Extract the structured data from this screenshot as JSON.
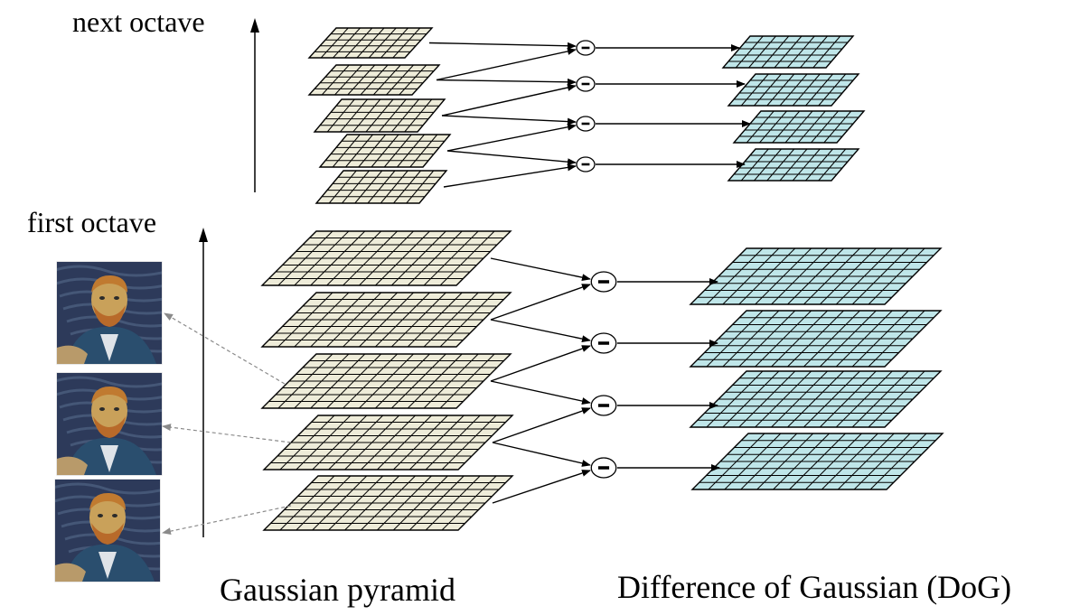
{
  "labels": {
    "next_octave": "next octave",
    "first_octave": "first octave",
    "gaussian_pyramid": "Gaussian pyramid",
    "dog": "Difference of Gaussian (DoG)"
  },
  "diff_symbol": "−",
  "colors": {
    "gaussian_fill": "#eeecd9",
    "dog_fill": "#bfe6e9",
    "grid_line": "#000000",
    "arrow": "#000000",
    "dashed_arrow": "#8a8a8a",
    "painting_background": "#2d3a5a",
    "painting_face": "#c9a15a",
    "painting_beard": "#b86a2a",
    "painting_coat": "#2a4e6e"
  },
  "octaves": [
    {
      "name": "next octave",
      "gaussian_levels": 5,
      "dog_levels": 4
    },
    {
      "name": "first octave",
      "gaussian_levels": 5,
      "dog_levels": 4
    }
  ],
  "example_images": [
    {
      "icon": "van-gogh-portrait"
    },
    {
      "icon": "van-gogh-portrait"
    },
    {
      "icon": "van-gogh-portrait"
    }
  ]
}
